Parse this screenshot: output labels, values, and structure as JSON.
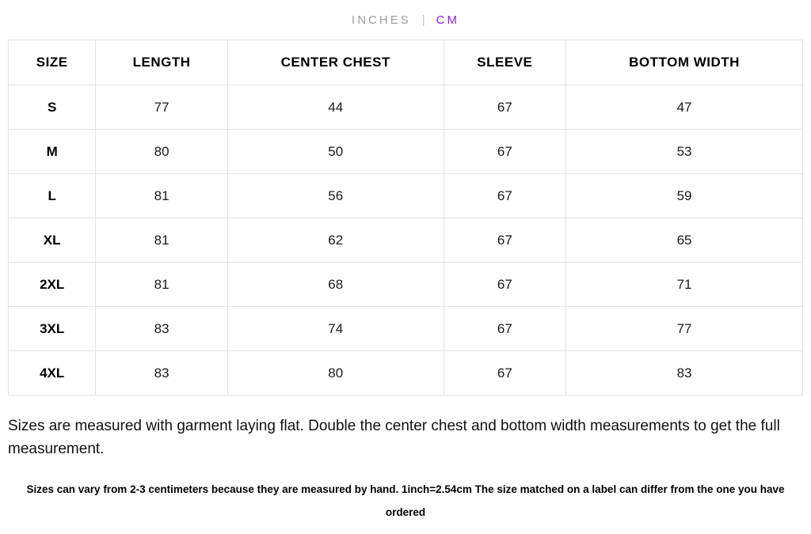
{
  "unit_toggle": {
    "inches_label": "INCHES",
    "separator": "|",
    "cm_label": "CM",
    "selected": "CM",
    "selected_color": "#8a24e0",
    "unselected_color": "#9e9e9e"
  },
  "table": {
    "headers": [
      "SIZE",
      "LENGTH",
      "CENTER CHEST",
      "SLEEVE",
      "BOTTOM WIDTH"
    ],
    "rows": [
      {
        "size": "S",
        "values": [
          "77",
          "44",
          "67",
          "47"
        ]
      },
      {
        "size": "M",
        "values": [
          "80",
          "50",
          "67",
          "53"
        ]
      },
      {
        "size": "L",
        "values": [
          "81",
          "56",
          "67",
          "59"
        ]
      },
      {
        "size": "XL",
        "values": [
          "81",
          "62",
          "67",
          "65"
        ]
      },
      {
        "size": "2XL",
        "values": [
          "81",
          "68",
          "67",
          "71"
        ]
      },
      {
        "size": "3XL",
        "values": [
          "83",
          "74",
          "67",
          "77"
        ]
      },
      {
        "size": "4XL",
        "values": [
          "83",
          "80",
          "67",
          "83"
        ]
      }
    ],
    "border_color": "#e3e3e3"
  },
  "notes": {
    "primary": "Sizes are measured with garment laying flat. Double the center chest and bottom width measurements to get the full measurement.",
    "secondary": "Sizes can vary from 2-3 centimeters because they are measured by hand. 1inch=2.54cm The size matched on a label can differ from the one you have ordered"
  }
}
